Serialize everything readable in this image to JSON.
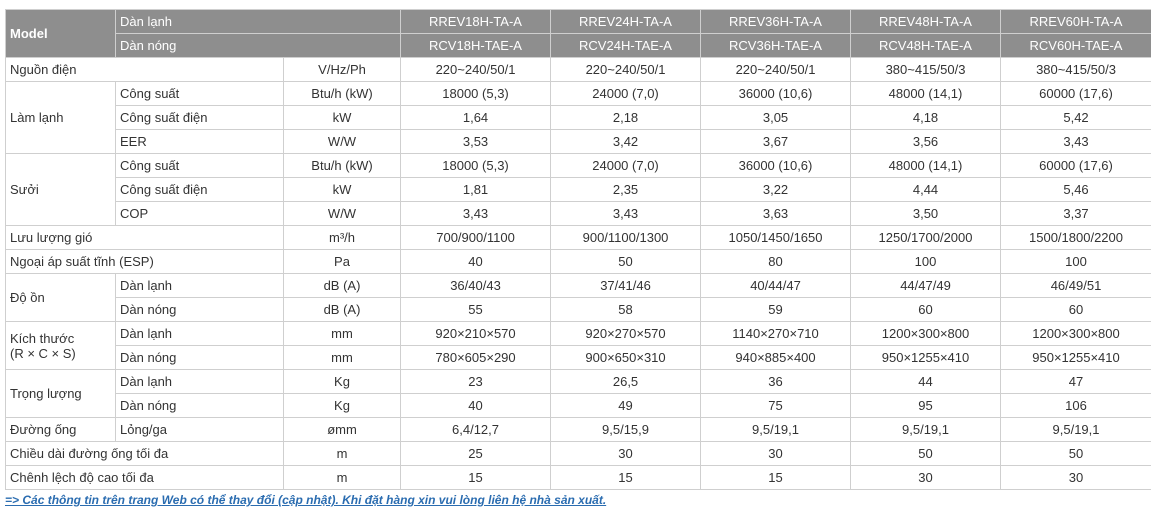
{
  "header": {
    "model_label": "Model",
    "indoor_label": "Dàn lạnh",
    "outdoor_label": "Dàn nóng",
    "indoor_models": [
      "RREV18H-TA-A",
      "RREV24H-TA-A",
      "RREV36H-TA-A",
      "RREV48H-TA-A",
      "RREV60H-TA-A"
    ],
    "outdoor_models": [
      "RCV18H-TAE-A",
      "RCV24H-TAE-A",
      "RCV36H-TAE-A",
      "RCV48H-TAE-A",
      "RCV60H-TAE-A"
    ]
  },
  "groups": [
    {
      "label": "Nguồn điện",
      "unit": "V/Hz/Ph",
      "values": [
        "220~240/50/1",
        "220~240/50/1",
        "220~240/50/1",
        "380~415/50/3",
        "380~415/50/3"
      ]
    },
    {
      "label": "Làm lạnh",
      "rows": [
        {
          "sub": "Công suất",
          "unit": "Btu/h (kW)",
          "values": [
            "18000 (5,3)",
            "24000 (7,0)",
            "36000 (10,6)",
            "48000 (14,1)",
            "60000 (17,6)"
          ]
        },
        {
          "sub": "Công suất điện",
          "unit": "kW",
          "values": [
            "1,64",
            "2,18",
            "3,05",
            "4,18",
            "5,42"
          ]
        },
        {
          "sub": "EER",
          "unit": "W/W",
          "values": [
            "3,53",
            "3,42",
            "3,67",
            "3,56",
            "3,43"
          ]
        }
      ]
    },
    {
      "label": "Sưởi",
      "rows": [
        {
          "sub": "Công suất",
          "unit": "Btu/h (kW)",
          "values": [
            "18000 (5,3)",
            "24000 (7,0)",
            "36000 (10,6)",
            "48000 (14,1)",
            "60000 (17,6)"
          ]
        },
        {
          "sub": "Công suất điện",
          "unit": "kW",
          "values": [
            "1,81",
            "2,35",
            "3,22",
            "4,44",
            "5,46"
          ]
        },
        {
          "sub": "COP",
          "unit": "W/W",
          "values": [
            "3,43",
            "3,43",
            "3,63",
            "3,50",
            "3,37"
          ]
        }
      ]
    },
    {
      "label": "Lưu lượng gió",
      "unit": "m³/h",
      "values": [
        "700/900/1100",
        "900/1100/1300",
        "1050/1450/1650",
        "1250/1700/2000",
        "1500/1800/2200"
      ]
    },
    {
      "label": "Ngoại áp suất tĩnh (ESP)",
      "unit": "Pa",
      "values": [
        "40",
        "50",
        "80",
        "100",
        "100"
      ]
    },
    {
      "label": "Độ ồn",
      "rows": [
        {
          "sub": "Dàn lạnh",
          "unit": "dB (A)",
          "values": [
            "36/40/43",
            "37/41/46",
            "40/44/47",
            "44/47/49",
            "46/49/51"
          ]
        },
        {
          "sub": "Dàn nóng",
          "unit": "dB (A)",
          "values": [
            "55",
            "58",
            "59",
            "60",
            "60"
          ]
        }
      ]
    },
    {
      "label_lines": [
        "Kích thước",
        "(R × C × S)"
      ],
      "rows": [
        {
          "sub": "Dàn lạnh",
          "unit": "mm",
          "values": [
            "920×210×570",
            "920×270×570",
            "1140×270×710",
            "1200×300×800",
            "1200×300×800"
          ]
        },
        {
          "sub": "Dàn nóng",
          "unit": "mm",
          "values": [
            "780×605×290",
            "900×650×310",
            "940×885×400",
            "950×1255×410",
            "950×1255×410"
          ]
        }
      ]
    },
    {
      "label": "Trọng lượng",
      "rows": [
        {
          "sub": "Dàn lạnh",
          "unit": "Kg",
          "values": [
            "23",
            "26,5",
            "36",
            "44",
            "47"
          ]
        },
        {
          "sub": "Dàn nóng",
          "unit": "Kg",
          "values": [
            "40",
            "49",
            "75",
            "95",
            "106"
          ]
        }
      ]
    },
    {
      "label": "Đường ống",
      "rows": [
        {
          "sub": "Lỏng/ga",
          "unit": "ømm",
          "values": [
            "6,4/12,7",
            "9,5/15,9",
            "9,5/19,1",
            "9,5/19,1",
            "9,5/19,1"
          ]
        }
      ]
    },
    {
      "label": "Chiều dài đường ống tối đa",
      "unit": "m",
      "values": [
        "25",
        "30",
        "30",
        "50",
        "50"
      ]
    },
    {
      "label": "Chênh lệch độ cao tối đa",
      "unit": "m",
      "values": [
        "15",
        "15",
        "15",
        "30",
        "30"
      ]
    }
  ],
  "footnote": "=> Các thông tin trên trang Web có thể thay đổi (cập nhật). Khi đặt hàng xin vui lòng liên hệ nhà sản xuất."
}
